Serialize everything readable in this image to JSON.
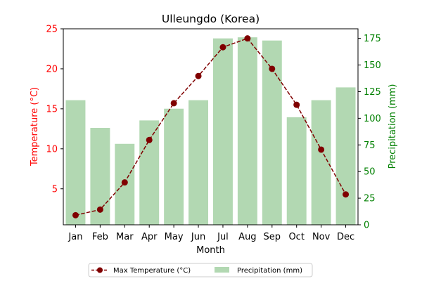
{
  "chart_data": {
    "type": "bar+line",
    "title": "Ulleungdo (Korea)",
    "xlabel": "Month",
    "categories": [
      "Jan",
      "Feb",
      "Mar",
      "Apr",
      "May",
      "Jun",
      "Jul",
      "Aug",
      "Sep",
      "Oct",
      "Nov",
      "Dec"
    ],
    "left_axis": {
      "label": "Temperature (°C)",
      "color": "#ff0000",
      "ylim": [
        0.5,
        25
      ],
      "ticks": [
        5,
        10,
        15,
        20,
        25
      ]
    },
    "right_axis": {
      "label": "Precipitation (mm)",
      "color": "#008000",
      "ylim": [
        0,
        184
      ],
      "ticks": [
        0,
        25,
        50,
        75,
        100,
        125,
        150,
        175
      ]
    },
    "series": [
      {
        "name": "Max Temperature (°C)",
        "type": "line",
        "axis": "left",
        "color": "#800000",
        "values": [
          1.7,
          2.4,
          5.8,
          11.1,
          15.7,
          19.1,
          22.7,
          23.8,
          20.0,
          15.5,
          9.9,
          4.3
        ]
      },
      {
        "name": "Precipitation (mm)",
        "type": "bar",
        "axis": "right",
        "color": "#b2d8b2",
        "values": [
          117,
          91,
          76,
          98,
          109,
          117,
          175,
          176,
          173,
          101,
          117,
          129
        ]
      }
    ],
    "grid": false,
    "legend_position": "bottom-center"
  }
}
